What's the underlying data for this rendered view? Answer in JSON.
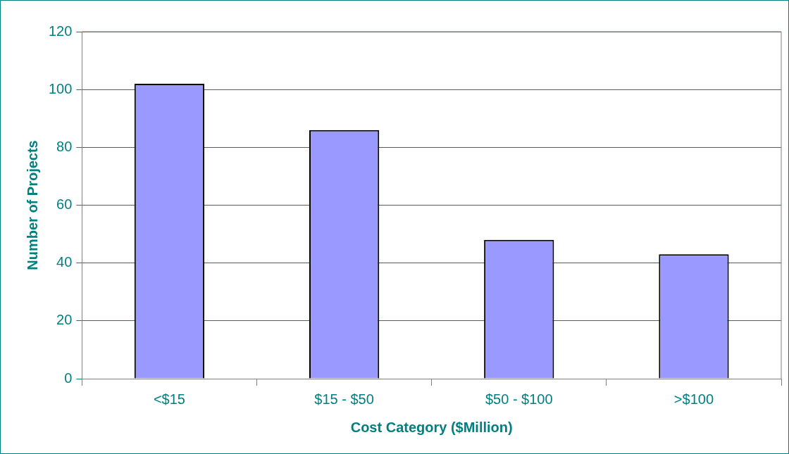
{
  "chart_data": {
    "type": "bar",
    "xlabel": "Cost Category ($Million)",
    "ylabel": "Number of Projects",
    "categories": [
      "<$15",
      "$15 - $50",
      "$50 - $100",
      ">$100"
    ],
    "values": [
      102,
      86,
      48,
      43
    ],
    "color": "#9999ff",
    "ylim": [
      0,
      120
    ],
    "yticks": [
      0,
      20,
      40,
      60,
      80,
      100,
      120
    ],
    "grid": "y",
    "legend": false
  }
}
